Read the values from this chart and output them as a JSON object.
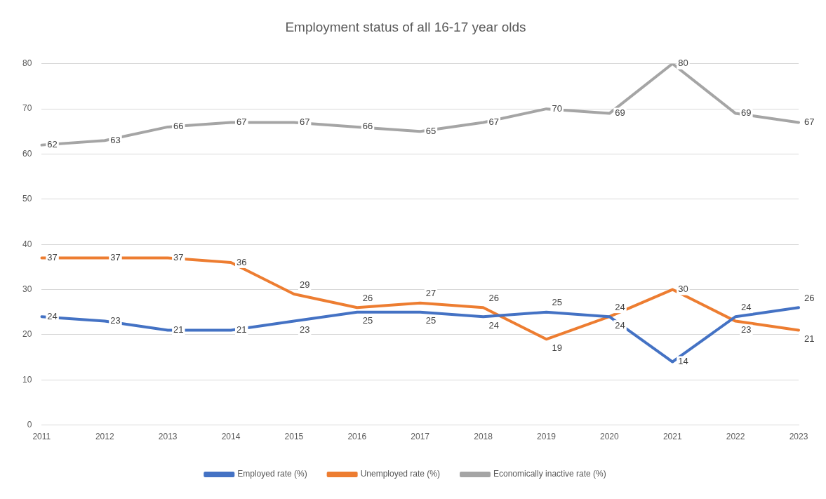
{
  "chart_data": {
    "type": "line",
    "title": "Employment status of all 16-17 year olds",
    "categories": [
      "2011",
      "2012",
      "2013",
      "2014",
      "2015",
      "2016",
      "2017",
      "2018",
      "2019",
      "2020",
      "2021",
      "2022",
      "2023"
    ],
    "series": [
      {
        "name": "Employed rate (%)",
        "color": "#4472c4",
        "values": [
          24,
          23,
          21,
          21,
          23,
          25,
          25,
          24,
          25,
          24,
          14,
          24,
          26
        ]
      },
      {
        "name": "Unemployed rate (%)",
        "color": "#ed7d31",
        "values": [
          37,
          37,
          37,
          36,
          29,
          26,
          27,
          26,
          19,
          24,
          30,
          23,
          21
        ]
      },
      {
        "name": "Economically inactive rate (%)",
        "color": "#a5a5a5",
        "values": [
          62,
          63,
          66,
          67,
          67,
          66,
          65,
          67,
          70,
          69,
          80,
          69,
          67
        ]
      }
    ],
    "ylim": [
      0,
      80
    ],
    "yticks": [
      0,
      10,
      20,
      30,
      40,
      50,
      60,
      70,
      80
    ],
    "grid": "y",
    "legend": "bottom",
    "marker": "none",
    "line_style": "solid",
    "data_labels": true
  }
}
